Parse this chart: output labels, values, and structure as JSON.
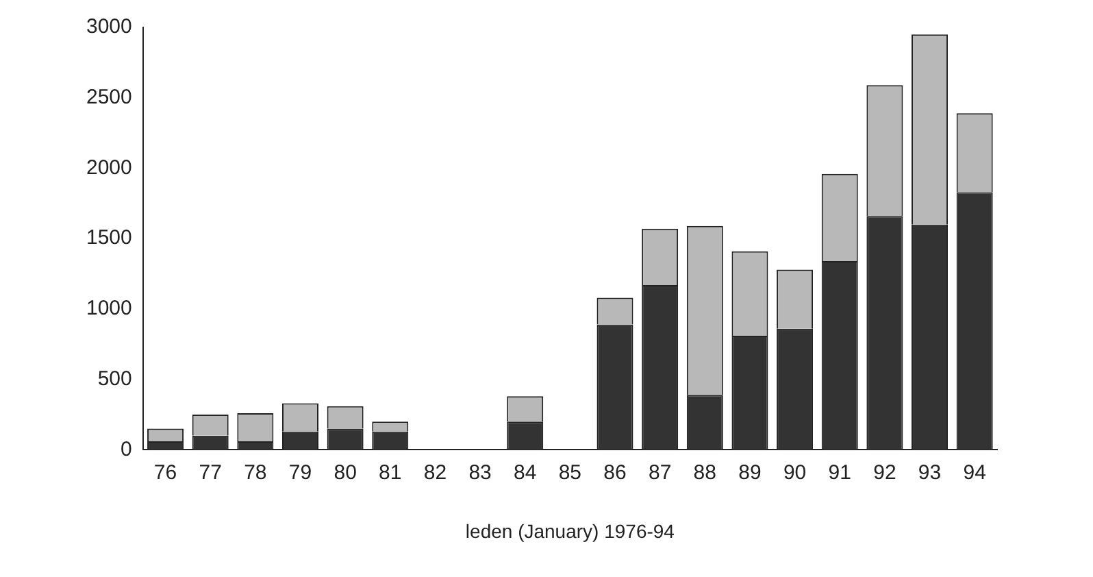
{
  "chart_data": {
    "type": "bar",
    "stacked": true,
    "xlabel": "leden (January) 1976-94",
    "categories": [
      "76",
      "77",
      "78",
      "79",
      "80",
      "81",
      "82",
      "83",
      "84",
      "85",
      "86",
      "87",
      "88",
      "89",
      "90",
      "91",
      "92",
      "93",
      "94"
    ],
    "series": [
      {
        "color": "#333333",
        "values": [
          60,
          100,
          60,
          130,
          150,
          130,
          null,
          null,
          200,
          null,
          890,
          1170,
          390,
          810,
          860,
          1340,
          1660,
          1600,
          1830
        ]
      },
      {
        "color": "#b8b8b8",
        "values": [
          90,
          150,
          200,
          200,
          160,
          70,
          null,
          null,
          180,
          null,
          190,
          400,
          1200,
          600,
          420,
          620,
          930,
          1350,
          560
        ]
      }
    ],
    "ylim": [
      0,
      3000
    ],
    "yticks": [
      0,
      500,
      1000,
      1500,
      2000,
      2500,
      3000
    ],
    "grid": false,
    "legend": false
  }
}
